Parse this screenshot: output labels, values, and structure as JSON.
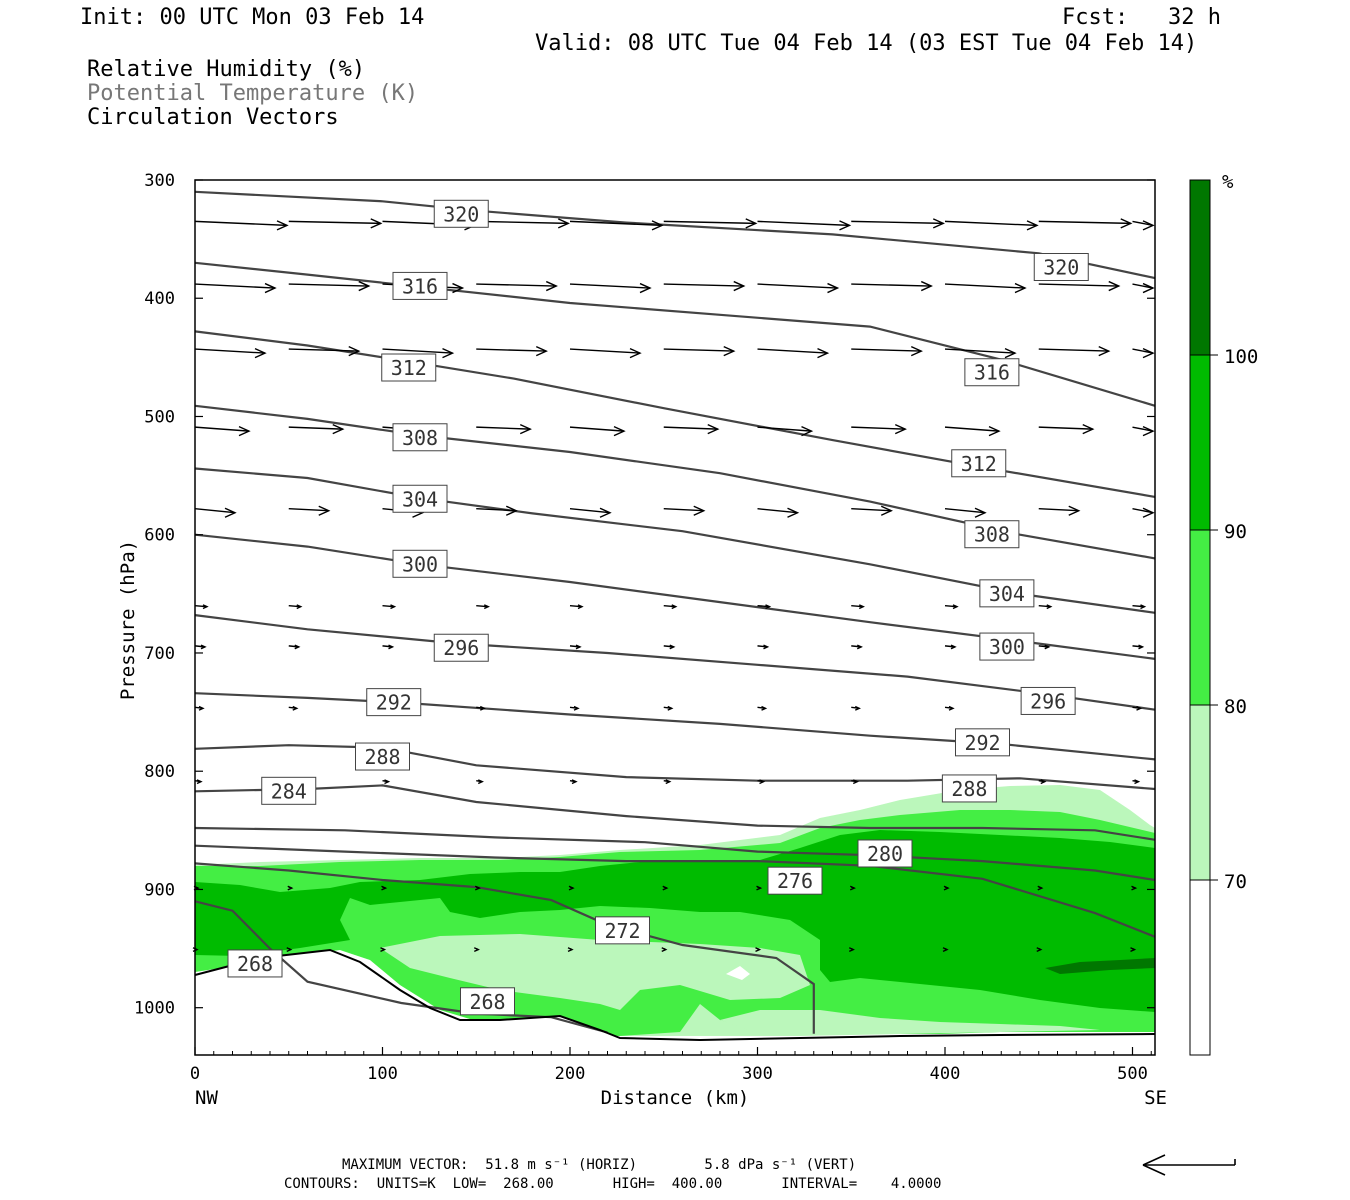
{
  "header": {
    "init": "Init: 00 UTC Mon 03 Feb 14",
    "fcst": "Fcst:   32 h",
    "valid": "Valid: 08 UTC Tue 04 Feb 14 (03 EST Tue 04 Feb 14)",
    "field1": "Relative Humidity (%)",
    "field2": "Potential Temperature (K)",
    "field3": "Circulation Vectors",
    "field2_color": "#777777"
  },
  "footer": {
    "max_vector": "MAXIMUM VECTOR:  51.8 m s⁻¹ (HORIZ)        5.8 dPa s⁻¹ (VERT)",
    "contours": "CONTOURS:  UNITS=K  LOW=  268.00       HIGH=  400.00       INTERVAL=    4.0000"
  },
  "colorbar": {
    "unit": "%",
    "levels": [
      "70",
      "80",
      "90",
      "100"
    ],
    "colors": [
      "#ffffff",
      "#bbf7bb",
      "#44ee44",
      "#00bb00",
      "#007700"
    ]
  },
  "chart_data": {
    "type": "contour",
    "xlabel": "Distance (km)",
    "ylabel": "Pressure (hPa)",
    "xlim": [
      0,
      512
    ],
    "ylim": [
      300,
      1040
    ],
    "y_inverted": true,
    "x_ticks": [
      0,
      100,
      200,
      300,
      400,
      500
    ],
    "y_ticks": [
      300,
      400,
      500,
      600,
      700,
      800,
      900,
      1000
    ],
    "x_end_labels": {
      "left": "NW",
      "right": "SE"
    },
    "theta_contours": [
      {
        "value": 320,
        "points": [
          [
            0,
            310
          ],
          [
            100,
            318
          ],
          [
            150,
            326
          ],
          [
            230,
            336
          ],
          [
            340,
            346
          ],
          [
            450,
            362
          ],
          [
            512,
            383
          ]
        ],
        "labels": [
          [
            142,
            329
          ],
          [
            462,
            374
          ]
        ]
      },
      {
        "value": 316,
        "points": [
          [
            0,
            370
          ],
          [
            60,
            380
          ],
          [
            130,
            392
          ],
          [
            200,
            404
          ],
          [
            280,
            414
          ],
          [
            360,
            424
          ],
          [
            430,
            452
          ],
          [
            512,
            491
          ]
        ],
        "labels": [
          [
            120,
            390
          ],
          [
            425,
            463
          ]
        ]
      },
      {
        "value": 312,
        "points": [
          [
            0,
            428
          ],
          [
            60,
            440
          ],
          [
            120,
            455
          ],
          [
            170,
            468
          ],
          [
            250,
            493
          ],
          [
            340,
            520
          ],
          [
            420,
            543
          ],
          [
            512,
            568
          ]
        ],
        "labels": [
          [
            114,
            459
          ],
          [
            418,
            540
          ]
        ]
      },
      {
        "value": 308,
        "points": [
          [
            0,
            491
          ],
          [
            60,
            502
          ],
          [
            120,
            516
          ],
          [
            200,
            530
          ],
          [
            280,
            548
          ],
          [
            360,
            572
          ],
          [
            440,
            600
          ],
          [
            512,
            620
          ]
        ],
        "labels": [
          [
            120,
            518
          ],
          [
            425,
            600
          ]
        ]
      },
      {
        "value": 304,
        "points": [
          [
            0,
            544
          ],
          [
            60,
            552
          ],
          [
            120,
            569
          ],
          [
            180,
            582
          ],
          [
            260,
            597
          ],
          [
            360,
            625
          ],
          [
            440,
            650
          ],
          [
            512,
            666
          ]
        ],
        "labels": [
          [
            120,
            570
          ],
          [
            433,
            650
          ]
        ]
      },
      {
        "value": 300,
        "points": [
          [
            0,
            600
          ],
          [
            60,
            610
          ],
          [
            120,
            625
          ],
          [
            200,
            640
          ],
          [
            280,
            657
          ],
          [
            360,
            674
          ],
          [
            440,
            690
          ],
          [
            512,
            705
          ]
        ],
        "labels": [
          [
            120,
            625
          ],
          [
            433,
            695
          ]
        ]
      },
      {
        "value": 296,
        "points": [
          [
            0,
            668
          ],
          [
            60,
            680
          ],
          [
            140,
            692
          ],
          [
            220,
            700
          ],
          [
            300,
            710
          ],
          [
            380,
            720
          ],
          [
            450,
            734
          ],
          [
            512,
            748
          ]
        ],
        "labels": [
          [
            142,
            696
          ],
          [
            455,
            741
          ]
        ]
      },
      {
        "value": 292,
        "points": [
          [
            0,
            734
          ],
          [
            60,
            738
          ],
          [
            110,
            742
          ],
          [
            200,
            752
          ],
          [
            280,
            760
          ],
          [
            360,
            770
          ],
          [
            430,
            777
          ],
          [
            512,
            790
          ]
        ],
        "labels": [
          [
            106,
            742
          ],
          [
            420,
            776
          ]
        ]
      },
      {
        "value": 288,
        "points": [
          [
            0,
            781
          ],
          [
            50,
            778
          ],
          [
            100,
            780
          ],
          [
            150,
            795
          ],
          [
            230,
            805
          ],
          [
            300,
            808
          ],
          [
            380,
            808
          ],
          [
            440,
            806
          ],
          [
            512,
            815
          ]
        ],
        "labels": [
          [
            100,
            788
          ],
          [
            413,
            815
          ]
        ]
      },
      {
        "value": 284,
        "points": [
          [
            0,
            817
          ],
          [
            60,
            815
          ],
          [
            100,
            812
          ],
          [
            150,
            826
          ],
          [
            230,
            838
          ],
          [
            300,
            846
          ],
          [
            360,
            848
          ],
          [
            420,
            848
          ],
          [
            480,
            850
          ],
          [
            512,
            858
          ]
        ],
        "labels": [
          [
            50,
            817
          ]
        ]
      },
      {
        "value": 280,
        "points": [
          [
            0,
            848
          ],
          [
            80,
            850
          ],
          [
            160,
            856
          ],
          [
            240,
            860
          ],
          [
            300,
            868
          ],
          [
            360,
            871
          ],
          [
            420,
            876
          ],
          [
            480,
            884
          ],
          [
            512,
            892
          ]
        ],
        "labels": [
          [
            368,
            870
          ]
        ]
      },
      {
        "value": 276,
        "points": [
          [
            0,
            863
          ],
          [
            80,
            868
          ],
          [
            160,
            873
          ],
          [
            230,
            876
          ],
          [
            300,
            876
          ],
          [
            360,
            880
          ],
          [
            420,
            891
          ],
          [
            480,
            920
          ],
          [
            512,
            940
          ]
        ],
        "labels": [
          [
            320,
            893
          ]
        ]
      },
      {
        "value": 272,
        "points": [
          [
            0,
            878
          ],
          [
            50,
            884
          ],
          [
            100,
            892
          ],
          [
            150,
            898
          ],
          [
            190,
            909
          ],
          [
            220,
            930
          ],
          [
            260,
            947
          ],
          [
            310,
            958
          ],
          [
            330,
            980
          ],
          [
            330,
            1022
          ]
        ],
        "labels": [
          [
            228,
            935
          ]
        ]
      },
      {
        "value": 268,
        "points": [
          [
            0,
            910
          ],
          [
            20,
            918
          ],
          [
            40,
            950
          ],
          [
            60,
            978
          ],
          [
            110,
            996
          ],
          [
            150,
            1005
          ],
          [
            190,
            1008
          ],
          [
            220,
            1021
          ]
        ],
        "labels": [
          [
            32,
            963
          ],
          [
            156,
            995
          ]
        ]
      }
    ],
    "rh_bins": [
      "<70",
      "70-80",
      "80-90",
      "90-100",
      ">100"
    ],
    "wind_vectors_rows_hPa": [
      335,
      388,
      443,
      509,
      578,
      660,
      694,
      746,
      808,
      898,
      950
    ],
    "max_vector_horiz": 51.8,
    "max_vector_vert": 5.8
  }
}
